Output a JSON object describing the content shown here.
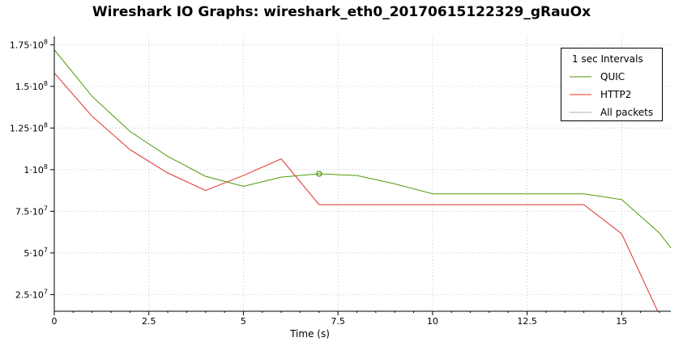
{
  "chart_data": {
    "type": "line",
    "title": "Wireshark IO Graphs: wireshark_eth0_20170615122329_gRauOx",
    "xlabel": "Time (s)",
    "ylabel": "",
    "xlim": [
      0,
      16.3
    ],
    "ylim": [
      15000000,
      180000000
    ],
    "x_ticks": [
      0,
      2.5,
      5,
      7.5,
      10,
      12.5,
      15
    ],
    "x_tick_labels": [
      "0",
      "2.5",
      "5",
      "7.5",
      "10",
      "12.5",
      "15"
    ],
    "y_ticks": [
      25000000,
      50000000,
      75000000,
      100000000,
      125000000,
      150000000,
      175000000
    ],
    "y_tick_labels": [
      "2.5·10",
      "5·10",
      "7.5·10",
      "1·10",
      "1.25·10",
      "1.5·10",
      "1.75·10"
    ],
    "y_tick_exponents": [
      "7",
      "7",
      "7",
      "8",
      "8",
      "8",
      "8"
    ],
    "grid": true,
    "legend": {
      "placement": "top-right",
      "title": "1 sec Intervals"
    },
    "series": [
      {
        "name": "QUIC",
        "color": "#4e9a06",
        "x": [
          0,
          1,
          2,
          3,
          4,
          5,
          6,
          7,
          8,
          9,
          10,
          11,
          12,
          13,
          14,
          15,
          16,
          16.3
        ],
        "values": [
          172000000,
          144000000,
          123000000,
          108000000,
          96000000,
          90000000,
          95500000,
          97500000,
          96500000,
          91500000,
          85500000,
          85500000,
          85500000,
          85500000,
          85500000,
          82000000,
          62000000,
          53000000
        ]
      },
      {
        "name": "HTTP2",
        "color": "#e0302a",
        "x": [
          0,
          1,
          2,
          3,
          4,
          5,
          6,
          7,
          8,
          9,
          10,
          11,
          12,
          13,
          14,
          15,
          15.95
        ],
        "values": [
          158000000,
          132000000,
          112000000,
          98000000,
          87500000,
          96500000,
          106500000,
          79000000,
          79000000,
          79000000,
          79000000,
          79000000,
          79000000,
          79000000,
          79000000,
          61500000,
          15000000
        ]
      },
      {
        "name": "All packets",
        "color": "#b0b0b0",
        "x": [],
        "values": []
      }
    ],
    "marker": {
      "series": "QUIC",
      "x": 7,
      "y": 97500000
    }
  }
}
